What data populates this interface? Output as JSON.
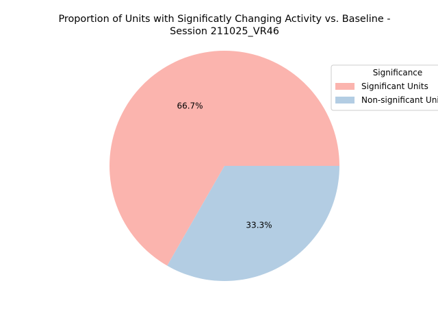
{
  "chart_data": {
    "type": "pie",
    "title_line1": "Proportion of Units with Significatly Changing Activity vs. Baseline -",
    "title_line2": "Session 211025_VR46",
    "slices": [
      {
        "label": "Significant Units",
        "value": 66.7,
        "pct_label": "66.7%",
        "color": "#fbb4ae"
      },
      {
        "label": "Non-significant Units",
        "value": 33.3,
        "pct_label": "33.3%",
        "color": "#b3cde3"
      }
    ],
    "legend": {
      "title": "Significance",
      "placement": "upper right, clipped at figure edge"
    },
    "start_angle_deg": 0,
    "direction": "counterclockwise"
  }
}
